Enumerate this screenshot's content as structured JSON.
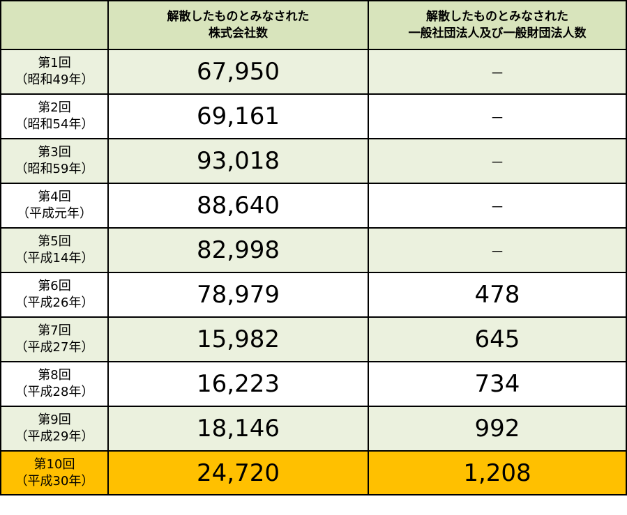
{
  "header": {
    "corner": "",
    "col_companies_line1": "解散したものとみなされた",
    "col_companies_line2": "株式会社数",
    "col_associations_line1": "解散したものとみなされた",
    "col_associations_line2": "一般社団法人及び一般財団法人数"
  },
  "rows": [
    {
      "round": "第1回",
      "era": "（昭和49年）",
      "companies": "67,950",
      "associations": "－"
    },
    {
      "round": "第2回",
      "era": "（昭和54年）",
      "companies": "69,161",
      "associations": "－"
    },
    {
      "round": "第3回",
      "era": "（昭和59年）",
      "companies": "93,018",
      "associations": "－"
    },
    {
      "round": "第4回",
      "era": "（平成元年）",
      "companies": "88,640",
      "associations": "－"
    },
    {
      "round": "第5回",
      "era": "（平成14年）",
      "companies": "82,998",
      "associations": "－"
    },
    {
      "round": "第6回",
      "era": "（平成26年）",
      "companies": "78,979",
      "associations": "478"
    },
    {
      "round": "第7回",
      "era": "（平成27年）",
      "companies": "15,982",
      "associations": "645"
    },
    {
      "round": "第8回",
      "era": "（平成28年）",
      "companies": "16,223",
      "associations": "734"
    },
    {
      "round": "第9回",
      "era": "（平成29年）",
      "companies": "18,146",
      "associations": "992"
    },
    {
      "round": "第10回",
      "era": "（平成30年）",
      "companies": "24,720",
      "associations": "1,208"
    }
  ],
  "colors": {
    "header_bg": "#d8e4bc",
    "shaded_row_bg": "#ebf1de",
    "white_row_bg": "#ffffff",
    "highlight_row_bg": "#ffc000",
    "border": "#000000"
  }
}
